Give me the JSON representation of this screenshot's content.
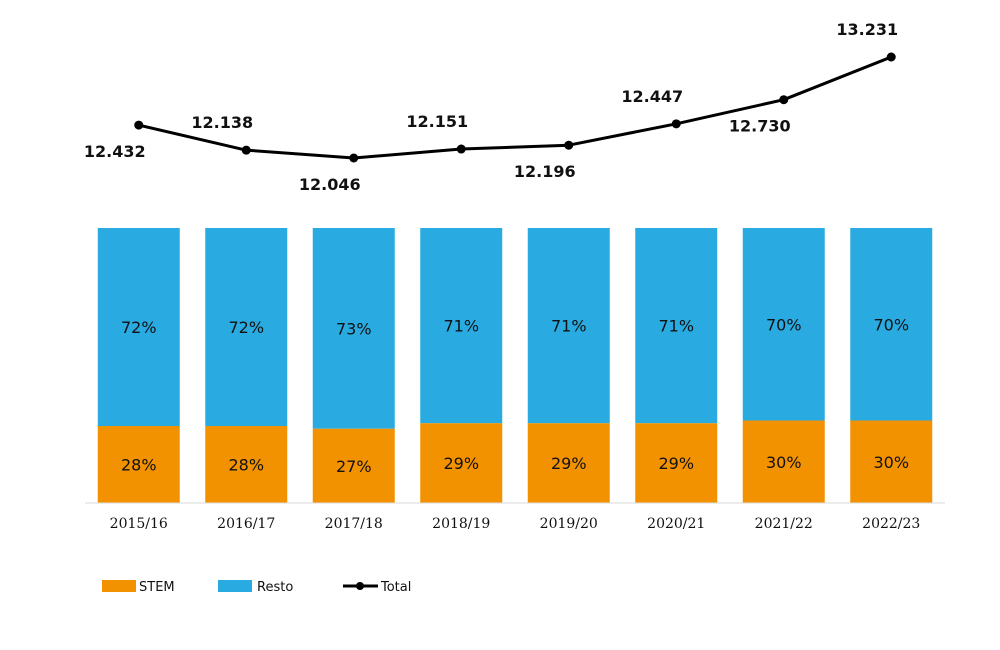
{
  "chart_data": {
    "type": "bar",
    "stacked": true,
    "normalized_percent": true,
    "categories": [
      "2015/16",
      "2016/17",
      "2017/18",
      "2018/19",
      "2019/20",
      "2020/21",
      "2021/22",
      "2022/23"
    ],
    "series": [
      {
        "name": "STEM",
        "type": "bar",
        "color": "#F39200",
        "values": [
          28,
          28,
          27,
          29,
          29,
          29,
          30,
          30
        ],
        "labels": [
          "28%",
          "28%",
          "27%",
          "29%",
          "29%",
          "29%",
          "30%",
          "30%"
        ]
      },
      {
        "name": "Resto",
        "type": "bar",
        "color": "#29ABE2",
        "values": [
          72,
          72,
          73,
          71,
          71,
          71,
          70,
          70
        ],
        "labels": [
          "72%",
          "72%",
          "73%",
          "71%",
          "71%",
          "71%",
          "70%",
          "70%"
        ]
      },
      {
        "name": "Total",
        "type": "line",
        "color": "#000000",
        "values": [
          12432,
          12138,
          12046,
          12151,
          12196,
          12447,
          12730,
          13231
        ],
        "labels": [
          "12.432",
          "12.138",
          "12.046",
          "12.151",
          "12.196",
          "12.447",
          "12.730",
          "13.231"
        ]
      }
    ],
    "legend_position": "bottom-left",
    "grid": false
  }
}
